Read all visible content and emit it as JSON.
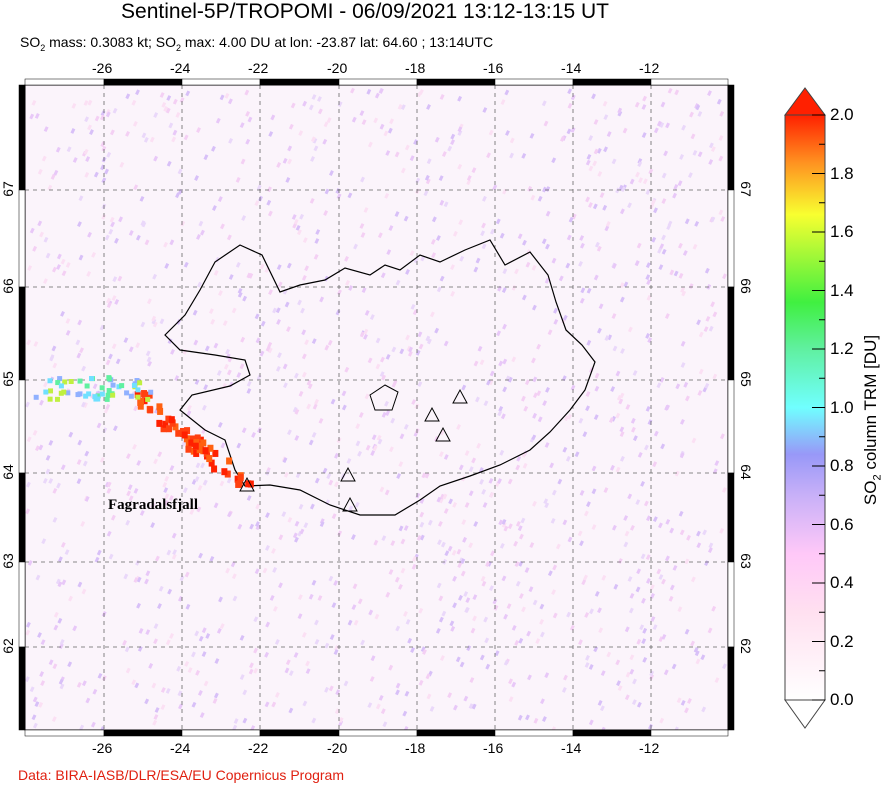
{
  "title": "Sentinel-5P/TROPOMI - 06/09/2021 13:12-13:15 UT",
  "subtitle": {
    "p1": "SO",
    "sub1": "2",
    "p2": " mass: 0.3083 kt; SO",
    "sub2": "2",
    "p3": " max: 4.00 DU at lon: -23.87 lat: 64.60 ; 13:14UTC"
  },
  "credit": "Data: BIRA-IASB/DLR/ESA/EU Copernicus Program",
  "map": {
    "lon_ticks": [
      "-26",
      "-24",
      "-22",
      "-20",
      "-18",
      "-16",
      "-14",
      "-12"
    ],
    "lat_ticks": [
      "67",
      "66",
      "65",
      "64",
      "63",
      "62"
    ],
    "volcano_label": "Fagradalsfjall"
  },
  "colorbar": {
    "label_p1": "SO",
    "label_sub": "2",
    "label_p2": " column TRM [DU]",
    "ticks": [
      "2.0",
      "1.8",
      "1.6",
      "1.4",
      "1.2",
      "1.0",
      "0.8",
      "0.6",
      "0.4",
      "0.2",
      "0.0"
    ],
    "colors": [
      "#ffffff",
      "#ffd0f0",
      "#c8a8f8",
      "#90b0ff",
      "#70ffff",
      "#50f080",
      "#40f040",
      "#f8ff30",
      "#ff9020",
      "#ff2000"
    ]
  }
}
